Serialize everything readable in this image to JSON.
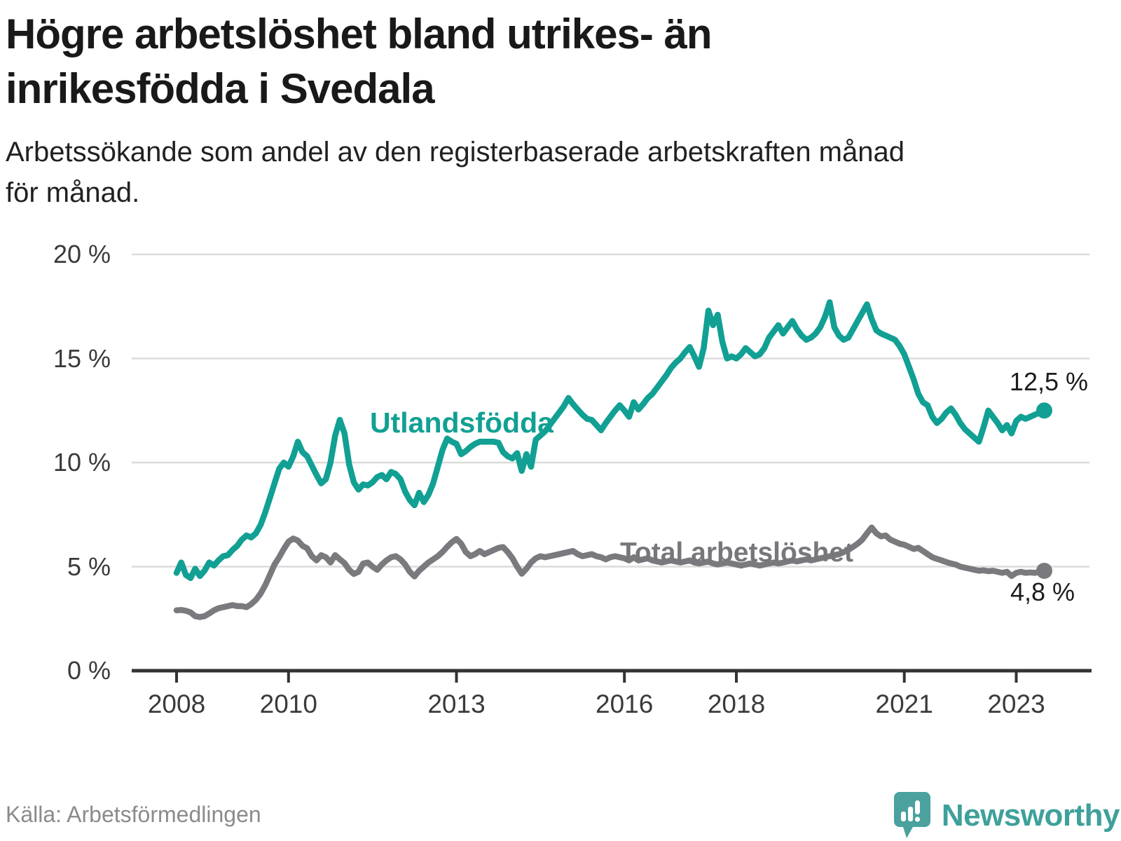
{
  "header": {
    "title_lines": [
      "Högre arbetslöshet bland utrikes- än",
      "inrikesfödda i Svedala"
    ],
    "subtitle_lines": [
      "Arbetssökande som andel av den registerbaserade arbetskraften månad",
      "för månad."
    ]
  },
  "footer": {
    "source": "Källa: Arbetsförmedlingen",
    "brand_name": "Newsworthy"
  },
  "colors": {
    "teal_line": "#11A093",
    "gray_line": "#7A7A7E",
    "gridline": "#DCDCDC",
    "axis": "#333333",
    "tick_text": "#3A3A3A",
    "value_text": "#1C1C1C",
    "source_text": "#8B8B8B",
    "brand_teal": "#3EA09B"
  },
  "chart_data": {
    "type": "line",
    "x_unit": "month",
    "x_start": "2008-01",
    "x_end": "2023-07",
    "ylim": [
      0,
      20
    ],
    "grid": "horizontal",
    "y_ticks": [
      {
        "value": 0,
        "label": "0 %"
      },
      {
        "value": 5,
        "label": "5 %"
      },
      {
        "value": 10,
        "label": "10 %"
      },
      {
        "value": 15,
        "label": "15 %"
      },
      {
        "value": 20,
        "label": "20 %"
      }
    ],
    "x_ticks": [
      {
        "year": 2008,
        "label": "2008"
      },
      {
        "year": 2010,
        "label": "2010"
      },
      {
        "year": 2013,
        "label": "2013"
      },
      {
        "year": 2016,
        "label": "2016"
      },
      {
        "year": 2018,
        "label": "2018"
      },
      {
        "year": 2021,
        "label": "2021"
      },
      {
        "year": 2023,
        "label": "2023"
      }
    ],
    "series": [
      {
        "name": "Utlandsfödda",
        "color": "#11A093",
        "end_label": "12,5 %",
        "end_value": 12.5,
        "values": [
          4.7,
          5.2,
          4.6,
          4.45,
          4.9,
          4.55,
          4.8,
          5.2,
          5.05,
          5.3,
          5.5,
          5.55,
          5.8,
          6.0,
          6.3,
          6.5,
          6.4,
          6.6,
          7.0,
          7.6,
          8.3,
          9.0,
          9.7,
          10.0,
          9.8,
          10.3,
          11.0,
          10.5,
          10.3,
          9.85,
          9.4,
          9.0,
          9.2,
          10.0,
          11.3,
          12.05,
          11.4,
          9.9,
          9.05,
          8.7,
          8.95,
          8.9,
          9.05,
          9.3,
          9.4,
          9.2,
          9.55,
          9.45,
          9.2,
          8.6,
          8.2,
          7.95,
          8.55,
          8.1,
          8.45,
          9.0,
          9.8,
          10.6,
          11.15,
          11.0,
          10.9,
          10.4,
          10.55,
          10.75,
          10.9,
          11.0,
          11.0,
          11.0,
          11.0,
          10.95,
          10.5,
          10.3,
          10.2,
          10.45,
          9.6,
          10.4,
          9.8,
          11.1,
          11.3,
          11.5,
          11.8,
          12.1,
          12.4,
          12.7,
          13.1,
          12.8,
          12.55,
          12.3,
          12.1,
          12.05,
          11.8,
          11.55,
          11.9,
          12.2,
          12.5,
          12.75,
          12.5,
          12.2,
          12.9,
          12.55,
          12.8,
          13.1,
          13.3,
          13.6,
          13.9,
          14.2,
          14.55,
          14.8,
          15.0,
          15.3,
          15.55,
          15.1,
          14.6,
          15.5,
          17.3,
          16.6,
          17.1,
          15.8,
          15.0,
          15.1,
          15.0,
          15.2,
          15.5,
          15.3,
          15.1,
          15.2,
          15.5,
          16.0,
          16.3,
          16.6,
          16.2,
          16.5,
          16.8,
          16.4,
          16.1,
          15.9,
          16.0,
          16.2,
          16.5,
          17.0,
          17.7,
          16.5,
          16.1,
          15.9,
          16.0,
          16.4,
          16.8,
          17.2,
          17.6,
          16.9,
          16.35,
          16.2,
          16.1,
          16.0,
          15.9,
          15.6,
          15.2,
          14.6,
          14.0,
          13.3,
          12.9,
          12.75,
          12.2,
          11.9,
          12.1,
          12.4,
          12.6,
          12.3,
          11.9,
          11.6,
          11.4,
          11.2,
          11.0,
          11.7,
          12.5,
          12.2,
          11.9,
          11.55,
          11.8,
          11.4,
          12.0,
          12.2,
          12.1,
          12.2,
          12.3,
          12.4,
          12.5
        ]
      },
      {
        "name": "Total arbetslöshet",
        "color": "#7A7A7E",
        "end_label": "4,8 %",
        "end_value": 4.8,
        "values": [
          2.9,
          2.92,
          2.88,
          2.8,
          2.62,
          2.58,
          2.62,
          2.75,
          2.9,
          3.0,
          3.05,
          3.1,
          3.15,
          3.1,
          3.1,
          3.05,
          3.2,
          3.4,
          3.7,
          4.1,
          4.6,
          5.1,
          5.45,
          5.85,
          6.2,
          6.35,
          6.25,
          6.0,
          5.88,
          5.5,
          5.3,
          5.55,
          5.45,
          5.2,
          5.55,
          5.35,
          5.17,
          4.85,
          4.65,
          4.75,
          5.15,
          5.2,
          5.0,
          4.85,
          5.1,
          5.3,
          5.45,
          5.5,
          5.35,
          5.1,
          4.75,
          4.53,
          4.8,
          5.0,
          5.2,
          5.35,
          5.5,
          5.7,
          5.95,
          6.17,
          6.33,
          6.1,
          5.7,
          5.5,
          5.6,
          5.75,
          5.6,
          5.7,
          5.8,
          5.9,
          5.94,
          5.7,
          5.4,
          5.0,
          4.66,
          4.9,
          5.2,
          5.4,
          5.5,
          5.45,
          5.5,
          5.55,
          5.6,
          5.65,
          5.7,
          5.75,
          5.6,
          5.5,
          5.55,
          5.6,
          5.5,
          5.45,
          5.35,
          5.45,
          5.5,
          5.45,
          5.4,
          5.3,
          5.45,
          5.3,
          5.35,
          5.4,
          5.3,
          5.25,
          5.2,
          5.25,
          5.3,
          5.25,
          5.2,
          5.25,
          5.3,
          5.2,
          5.15,
          5.2,
          5.25,
          5.15,
          5.1,
          5.15,
          5.2,
          5.15,
          5.1,
          5.05,
          5.1,
          5.15,
          5.1,
          5.05,
          5.1,
          5.15,
          5.2,
          5.15,
          5.2,
          5.25,
          5.3,
          5.25,
          5.3,
          5.35,
          5.3,
          5.35,
          5.4,
          5.45,
          5.5,
          5.55,
          5.6,
          5.7,
          5.8,
          5.95,
          6.1,
          6.3,
          6.6,
          6.88,
          6.6,
          6.45,
          6.5,
          6.3,
          6.2,
          6.1,
          6.05,
          5.95,
          5.85,
          5.9,
          5.75,
          5.6,
          5.45,
          5.37,
          5.3,
          5.22,
          5.15,
          5.1,
          5.0,
          4.95,
          4.9,
          4.85,
          4.8,
          4.82,
          4.78,
          4.8,
          4.75,
          4.7,
          4.75,
          4.55,
          4.7,
          4.75,
          4.7,
          4.72,
          4.7,
          4.75,
          4.8
        ]
      }
    ]
  }
}
